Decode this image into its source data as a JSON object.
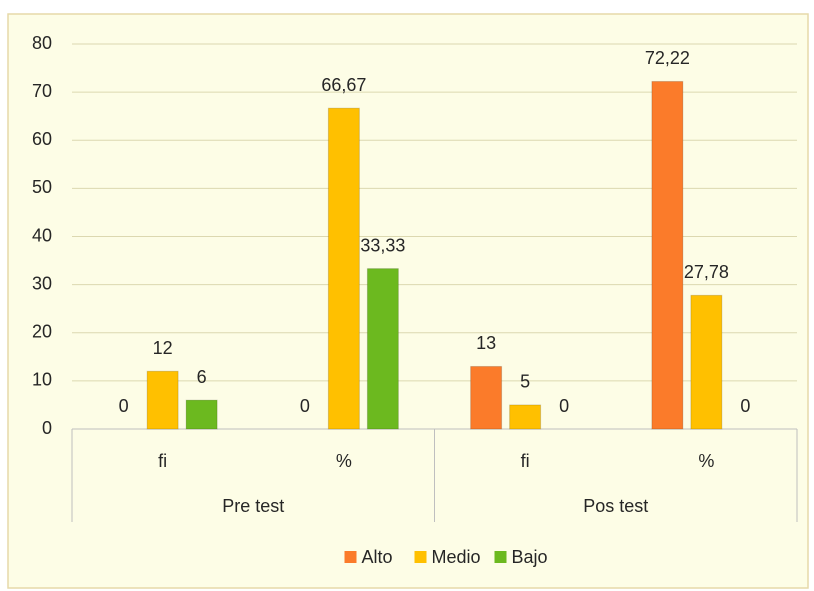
{
  "chart_data": {
    "type": "bar",
    "categories": [
      "fi",
      "%",
      "fi",
      "%"
    ],
    "groups": [
      "Pre test",
      "Pos test"
    ],
    "series": [
      {
        "name": "Alto",
        "color": "#fb7b2a",
        "values": [
          0,
          0,
          13,
          72.22
        ],
        "value_labels": [
          "0",
          "0",
          "13",
          "72,22"
        ]
      },
      {
        "name": "Medio",
        "color": "#ffc000",
        "values": [
          12,
          66.67,
          5,
          27.78
        ],
        "value_labels": [
          "12",
          "66,67",
          "5",
          "27,78"
        ]
      },
      {
        "name": "Bajo",
        "color": "#6cb91f",
        "values": [
          6,
          33.33,
          0,
          0
        ],
        "value_labels": [
          "6",
          "33,33",
          "0",
          "0"
        ]
      }
    ],
    "ylim": [
      0,
      80
    ],
    "yticks": [
      0,
      10,
      20,
      30,
      40,
      50,
      60,
      70,
      80
    ],
    "grid": true,
    "legend": "bottom"
  }
}
